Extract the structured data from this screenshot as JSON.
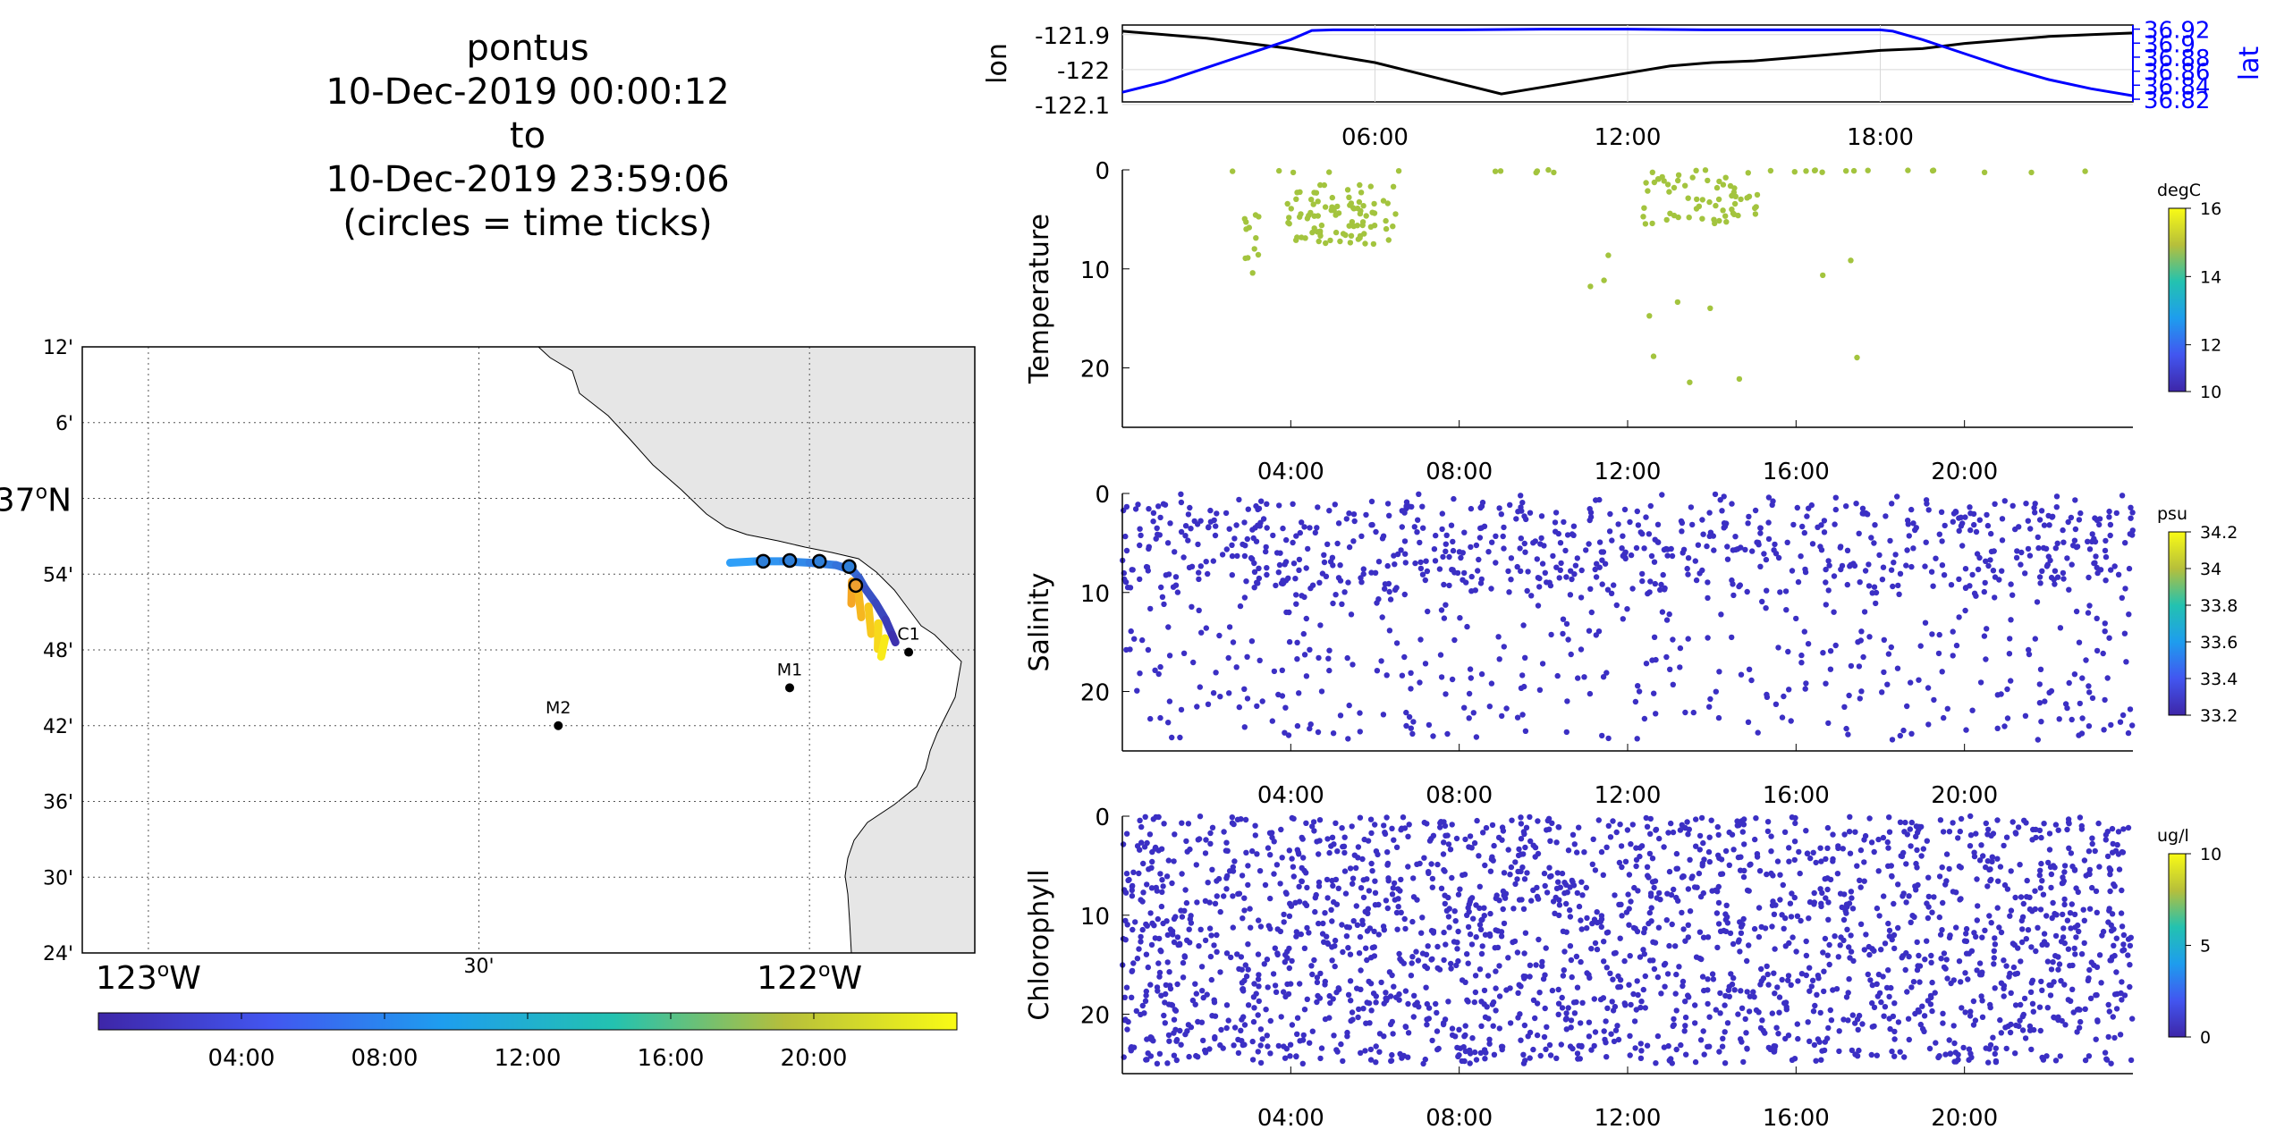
{
  "title": {
    "line1": "pontus",
    "line2": "10-Dec-2019 00:00:12",
    "line3": "to",
    "line4": "10-Dec-2019 23:59:06",
    "line5": "(circles = time ticks)"
  },
  "colors": {
    "track_start": "#3e26a8",
    "track_mid": "#2f9ff8",
    "track_end": "#f9fb15",
    "lat_axis": "#0000ff",
    "lon_line": "#000000",
    "temperature_dots": "#a3c43e",
    "salinity_dots": "#3b2fc4",
    "chlorophyll_dots": "#3b2fc4",
    "land": "#e6e6e6"
  },
  "chart_data": [
    {
      "type": "map",
      "lon_labels": [
        "123°W",
        "30'",
        "122°W"
      ],
      "lon_ticks": [
        -123.0,
        -122.5,
        -122.0
      ],
      "lat_labels": [
        "12'",
        "6'",
        "37°N",
        "54'",
        "48'",
        "42'",
        "36'",
        "30'",
        "24'"
      ],
      "lat_ticks": [
        37.2,
        37.1,
        37.0,
        36.9,
        36.8,
        36.7,
        36.6,
        36.5,
        36.4
      ],
      "xlim": [
        -123.1,
        -121.75
      ],
      "ylim": [
        36.4,
        37.2
      ],
      "grid": true,
      "stations": [
        {
          "name": "C1",
          "lon": -121.85,
          "lat": 36.797
        },
        {
          "name": "M1",
          "lon": -122.03,
          "lat": 36.75
        },
        {
          "name": "M2",
          "lon": -122.38,
          "lat": 36.7
        }
      ],
      "track": [
        [
          -122.12,
          36.915
        ],
        [
          -122.08,
          36.917
        ],
        [
          -122.04,
          36.917
        ],
        [
          -122.0,
          36.915
        ],
        [
          -121.96,
          36.912
        ],
        [
          -121.935,
          36.905
        ],
        [
          -121.925,
          36.895
        ],
        [
          -121.915,
          36.88
        ],
        [
          -121.9,
          36.862
        ],
        [
          -121.885,
          36.84
        ],
        [
          -121.875,
          36.82
        ],
        [
          -121.87,
          36.81
        ]
      ],
      "time_tick_circles": [
        [
          -122.07,
          36.917
        ],
        [
          -122.03,
          36.918
        ],
        [
          -121.985,
          36.917
        ],
        [
          -121.94,
          36.91
        ],
        [
          -121.93,
          36.885
        ]
      ],
      "colorbar": {
        "ticks": [
          "04:00",
          "08:00",
          "12:00",
          "16:00",
          "20:00"
        ]
      }
    },
    {
      "type": "line",
      "xlabel_ticks": [
        "06:00",
        "12:00",
        "18:00"
      ],
      "ylabel_left": "lon",
      "ylabel_right": "lat",
      "left_ticks": [
        "-121.9",
        "-122",
        "-122.1"
      ],
      "right_ticks": [
        "36.92",
        "36.9",
        "36.88",
        "36.86",
        "36.84",
        "36.82"
      ],
      "series": [
        {
          "name": "lon",
          "x": [
            0,
            1,
            2,
            3,
            4,
            5,
            6,
            7,
            8,
            9,
            10,
            11,
            12,
            13,
            14,
            15,
            16,
            17,
            18,
            19,
            20,
            21,
            22,
            23,
            24
          ],
          "y": [
            -121.89,
            -121.9,
            -121.91,
            -121.925,
            -121.94,
            -121.96,
            -121.98,
            -122.01,
            -122.04,
            -122.07,
            -122.05,
            -122.03,
            -122.01,
            -121.99,
            -121.98,
            -121.975,
            -121.965,
            -121.955,
            -121.945,
            -121.94,
            -121.925,
            -121.915,
            -121.905,
            -121.9,
            -121.895
          ]
        },
        {
          "name": "lat",
          "x": [
            0,
            1,
            2,
            3,
            4,
            4.5,
            5,
            6,
            8,
            10,
            12,
            14,
            16,
            18,
            18.3,
            19,
            20,
            21,
            22,
            23,
            24
          ],
          "y": [
            36.83,
            36.845,
            36.865,
            36.885,
            36.905,
            36.918,
            36.919,
            36.919,
            36.919,
            36.92,
            36.92,
            36.919,
            36.919,
            36.919,
            36.917,
            36.905,
            36.885,
            36.865,
            36.848,
            36.835,
            36.825
          ]
        }
      ]
    },
    {
      "type": "scatter",
      "ylabel": "Temperature",
      "x_ticks": [
        "04:00",
        "08:00",
        "12:00",
        "16:00",
        "20:00"
      ],
      "y_ticks": [
        "0",
        "10",
        "20"
      ],
      "ylim": [
        0,
        26
      ],
      "colorbar": {
        "unit": "degC",
        "ticks": [
          "16",
          "14",
          "12",
          "10"
        ]
      }
    },
    {
      "type": "scatter",
      "ylabel": "Salinity",
      "x_ticks": [
        "04:00",
        "08:00",
        "12:00",
        "16:00",
        "20:00"
      ],
      "y_ticks": [
        "0",
        "10",
        "20"
      ],
      "ylim": [
        0,
        26
      ],
      "colorbar": {
        "unit": "psu",
        "ticks": [
          "34.2",
          "34",
          "33.8",
          "33.6",
          "33.4",
          "33.2"
        ]
      }
    },
    {
      "type": "scatter",
      "ylabel": "Chlorophyll",
      "x_ticks": [
        "04:00",
        "08:00",
        "12:00",
        "16:00",
        "20:00"
      ],
      "y_ticks": [
        "0",
        "10",
        "20"
      ],
      "ylim": [
        0,
        26
      ],
      "colorbar": {
        "unit": "ug/l",
        "ticks": [
          "10",
          "5",
          "0"
        ]
      }
    }
  ]
}
